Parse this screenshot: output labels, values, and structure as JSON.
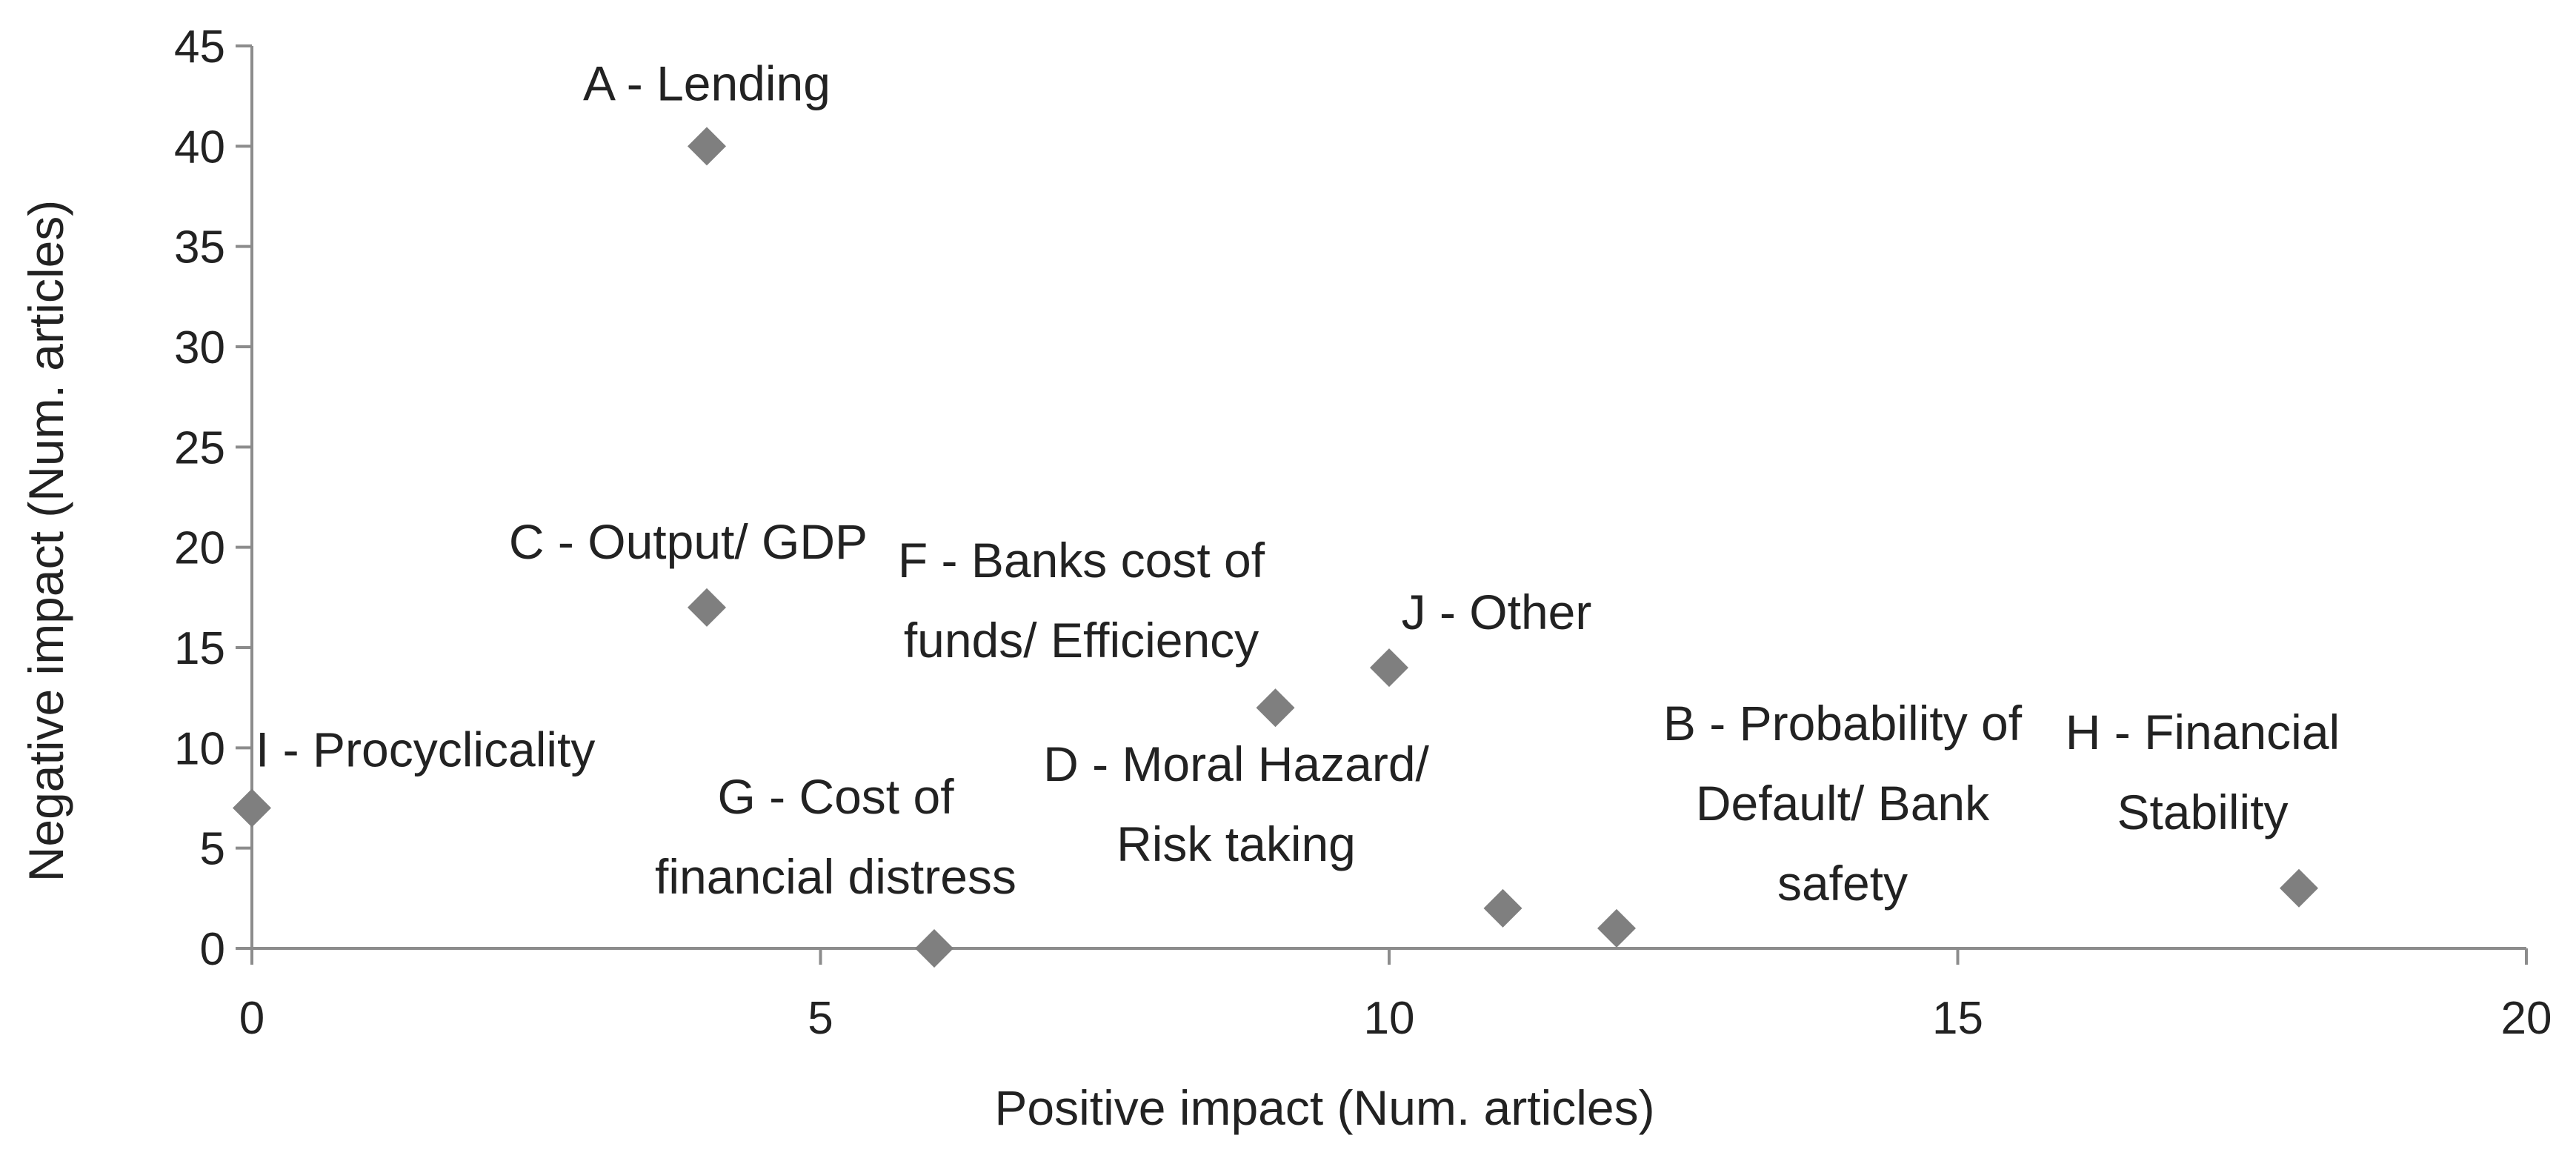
{
  "chart_data": {
    "type": "scatter",
    "xlabel": "Positive impact (Num. articles)",
    "ylabel": "Negative impact (Num. articles)",
    "xlim": [
      0,
      20
    ],
    "ylim": [
      0,
      45
    ],
    "x_ticks": [
      0,
      5,
      10,
      15,
      20
    ],
    "y_ticks": [
      0,
      5,
      10,
      15,
      20,
      25,
      30,
      35,
      40,
      45
    ],
    "grid": false,
    "legend": "none",
    "marker": "diamond",
    "marker_color": "#7f7f7f",
    "axis_color": "#8c8c8c",
    "points": [
      {
        "label_lines": [
          "A - Lending"
        ],
        "x": 4,
        "y": 40
      },
      {
        "label_lines": [
          "B - Probability of",
          "Default/ Bank",
          "safety"
        ],
        "x": 12,
        "y": 1
      },
      {
        "label_lines": [
          "C - Output/ GDP"
        ],
        "x": 4,
        "y": 17
      },
      {
        "label_lines": [
          "D - Moral Hazard/",
          "Risk taking"
        ],
        "x": 11,
        "y": 2
      },
      {
        "label_lines": [
          "F - Banks cost of",
          "funds/ Efficiency"
        ],
        "x": 9,
        "y": 12
      },
      {
        "label_lines": [
          "G - Cost of",
          "financial distress"
        ],
        "x": 6,
        "y": 0
      },
      {
        "label_lines": [
          "H - Financial",
          "Stability"
        ],
        "x": 18,
        "y": 3
      },
      {
        "label_lines": [
          "I - Procyclicality"
        ],
        "x": 0,
        "y": 7
      },
      {
        "label_lines": [
          "J - Other"
        ],
        "x": 10,
        "y": 14
      }
    ]
  }
}
